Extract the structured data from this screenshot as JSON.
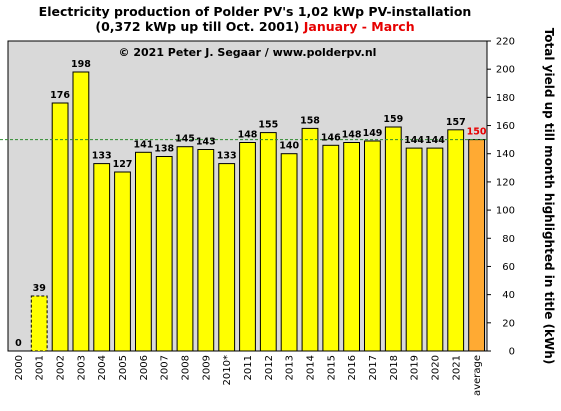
{
  "title_line1": "Electricity production  of Polder PV's 1,02 kWp PV-installation",
  "title_line2_prefix": "(0,372 kWp up till Oct. 2001) ",
  "title_line2_highlight": "January - March",
  "colors": {
    "bar": "#ffff00",
    "average_bar": "#ffaa33",
    "plot_bg": "#d9d9d9",
    "reference_line": "#2e8b2e",
    "highlight_text": "#e60000"
  },
  "chart_data": {
    "type": "bar",
    "title": "Electricity production  of Polder PV's 1,02 kWp PV-installation (0,372 kWp up till Oct. 2001) January - March",
    "annotation": "© 2021 Peter J. Segaar / www.polderpv.nl",
    "ylabel": "Total yield up till month highlighted in title (kWh)",
    "xlabel": "",
    "ylim": [
      0,
      220
    ],
    "yticks": [
      0,
      20,
      40,
      60,
      80,
      100,
      120,
      140,
      160,
      180,
      200,
      220
    ],
    "y_axis_side": "right",
    "grid": false,
    "reference_line": 150,
    "categories": [
      "2000",
      "2001",
      "2002",
      "2003",
      "2004",
      "2005",
      "2006",
      "2007",
      "2008",
      "2009",
      "2010*",
      "2011",
      "2012",
      "2013",
      "2014",
      "2015",
      "2016",
      "2017",
      "2018",
      "2019",
      "2020",
      "2021",
      "average"
    ],
    "values": [
      0,
      39,
      176,
      198,
      133,
      127,
      141,
      138,
      145,
      143,
      133,
      148,
      155,
      140,
      158,
      146,
      148,
      149,
      159,
      144,
      144,
      157,
      150
    ],
    "dashed_bars": [
      "2001"
    ],
    "highlighted_label": "average"
  }
}
